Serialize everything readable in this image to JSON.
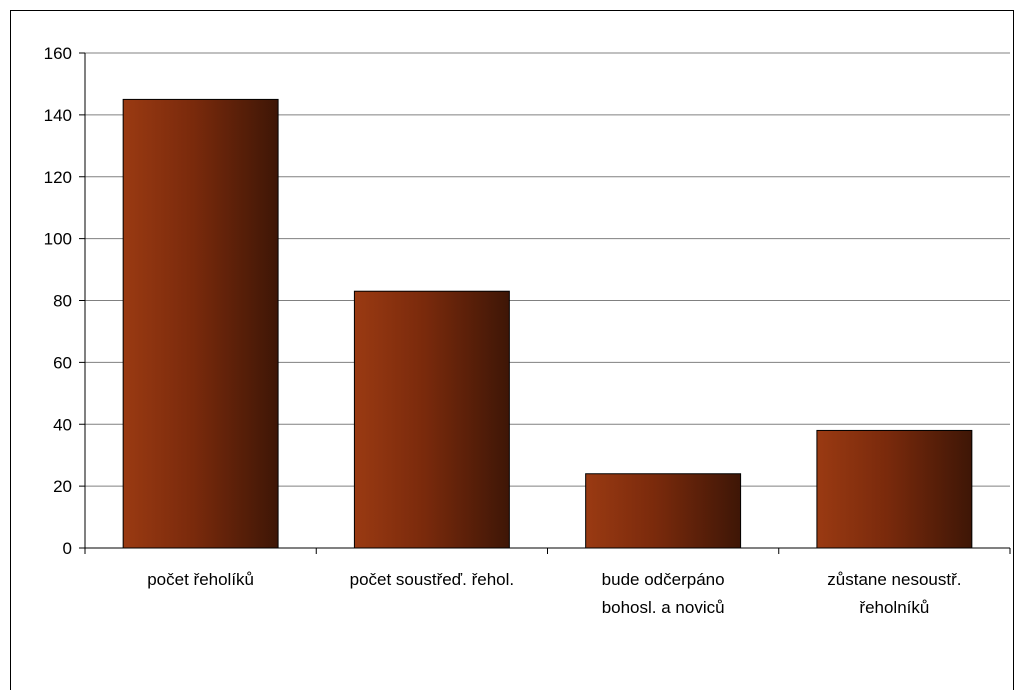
{
  "chart_data": {
    "type": "bar",
    "title": "",
    "xlabel": "",
    "ylabel": "",
    "categories": [
      [
        "počet řeholíků"
      ],
      [
        "počet soustřeď. řehol."
      ],
      [
        "bude odčerpáno",
        "bohosl. a noviců"
      ],
      [
        "zůstane nesoustř.",
        "řeholníků"
      ]
    ],
    "values": [
      145,
      83,
      24,
      38
    ],
    "ylim": [
      0,
      160
    ],
    "yticks": [
      0,
      20,
      40,
      60,
      80,
      100,
      120,
      140,
      160
    ],
    "grid": true,
    "legend": "none",
    "colors": {
      "bar_light": "#9a3a12",
      "bar_mid": "#7a2a0c",
      "bar_dark": "#3e1606",
      "grid": "#808080",
      "axis": "#000000"
    }
  }
}
